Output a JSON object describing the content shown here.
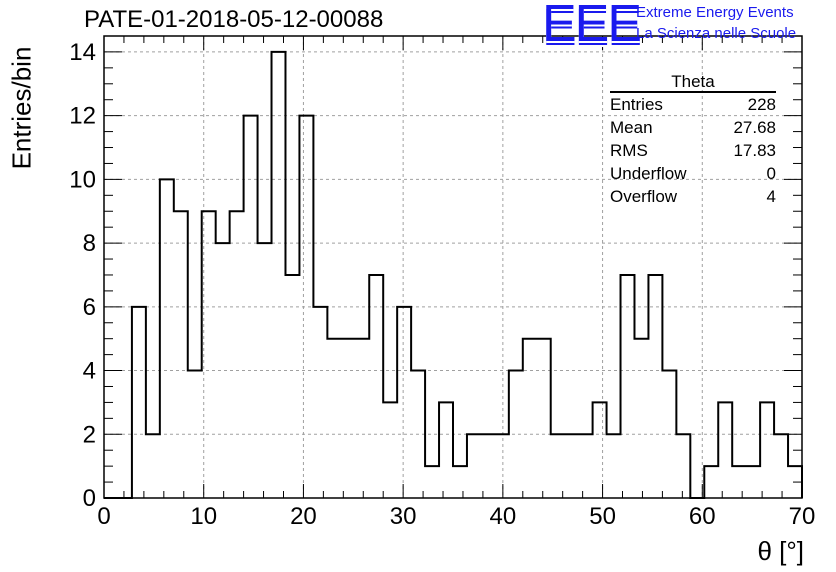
{
  "chart_title": "PATE-01-2018-05-12-00088",
  "logo": {
    "text": "EEE",
    "line1": "Extreme Energy Events",
    "line2": "La Scienza nelle Scuole",
    "color": "#1a1aee"
  },
  "stats_box": {
    "title": "Theta",
    "rows": [
      {
        "label": "Entries",
        "value": "228"
      },
      {
        "label": "Mean",
        "value": "27.68"
      },
      {
        "label": "RMS",
        "value": "17.83"
      },
      {
        "label": "Underflow",
        "value": "0"
      },
      {
        "label": "Overflow",
        "value": "4"
      }
    ]
  },
  "chart_data": {
    "type": "bar",
    "style": "step-histogram",
    "title": "PATE-01-2018-05-12-00088",
    "xlabel": "θ [°]",
    "ylabel": "Entries/bin",
    "xlim": [
      0,
      70
    ],
    "ylim": [
      0,
      14.5
    ],
    "bin_width": 1.4,
    "x_ticks": [
      0,
      10,
      20,
      30,
      40,
      50,
      60,
      70
    ],
    "y_ticks": [
      0,
      2,
      4,
      6,
      8,
      10,
      12,
      14
    ],
    "grid": true,
    "series": [
      {
        "values": [
          0,
          0,
          6,
          2,
          10,
          9,
          4,
          9,
          8,
          9,
          12,
          8,
          14,
          7,
          12,
          6,
          5,
          5,
          5,
          7,
          3,
          6,
          4,
          1,
          3,
          1,
          2,
          2,
          2,
          4,
          5,
          5,
          2,
          2,
          2,
          3,
          2,
          7,
          5,
          7,
          4,
          2,
          0,
          1,
          3,
          1,
          1,
          3,
          2,
          1
        ]
      }
    ],
    "line_color": "#000000",
    "grid_color": "#a0a0a0"
  }
}
